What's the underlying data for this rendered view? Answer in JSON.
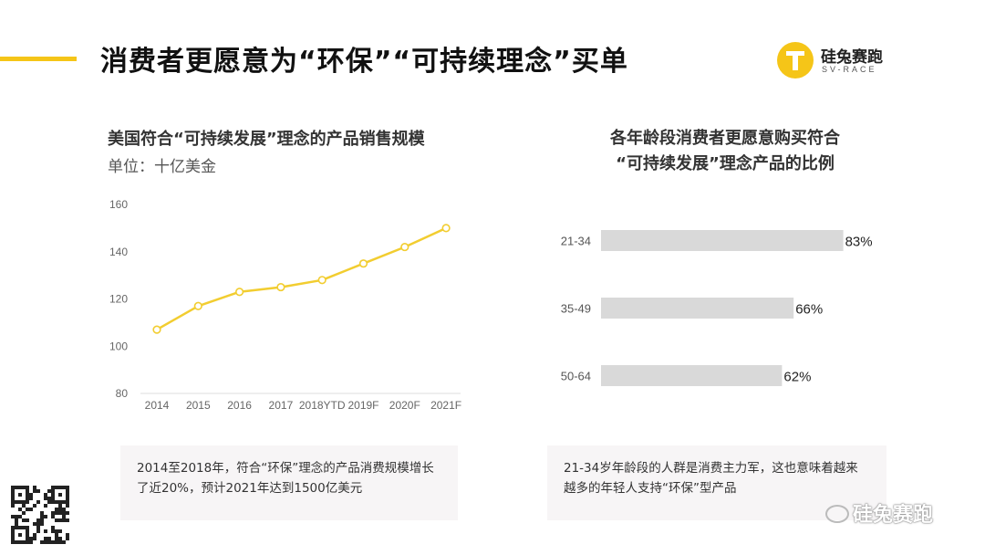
{
  "slide": {
    "title": "消费者更愿意为“环保”“可持续理念”买单",
    "accent_color": "#f5c518"
  },
  "logo": {
    "name_cn": "硅兔赛跑",
    "name_en": "SV-RACE",
    "icon": "sv-race-logo-icon"
  },
  "left_panel": {
    "title": "美国符合“可持续发展”理念的产品销售规模",
    "unit": "单位：十亿美金",
    "note": "2014至2018年，符合“环保”理念的产品消费规模增长了近20%，预计2021年达到1500亿美元"
  },
  "right_panel": {
    "title_line1": "各年龄段消费者更愿意购买符合",
    "title_line2": "“可持续发展”理念产品的比例",
    "note": "21-34岁年龄段的人群是消费主力军，这也意味着越来越多的年轻人支持“环保”型产品"
  },
  "chart_data": [
    {
      "type": "line",
      "title": "美国符合“可持续发展”理念的产品销售规模",
      "ylabel": "单位：十亿美金",
      "categories": [
        "2014",
        "2015",
        "2016",
        "2017",
        "2018YTD",
        "2019F",
        "2020F",
        "2021F"
      ],
      "values": [
        107,
        117,
        123,
        125,
        128,
        135,
        142,
        150
      ],
      "yticks": [
        80,
        100,
        120,
        140,
        160
      ],
      "ylim": [
        80,
        160
      ],
      "color": "#f2cd30",
      "grid": false
    },
    {
      "type": "bar",
      "orientation": "horizontal",
      "title": "各年龄段消费者更愿意购买符合“可持续发展”理念产品的比例",
      "categories": [
        "21-34",
        "35-49",
        "50-64"
      ],
      "values": [
        83,
        66,
        62
      ],
      "value_labels": [
        "83%",
        "66%",
        "62%"
      ],
      "color": "#d9d9d9"
    }
  ],
  "watermark": {
    "text": "硅兔赛跑",
    "icon": "wechat-icon"
  },
  "qr": {
    "icon": "qr-code-icon"
  }
}
